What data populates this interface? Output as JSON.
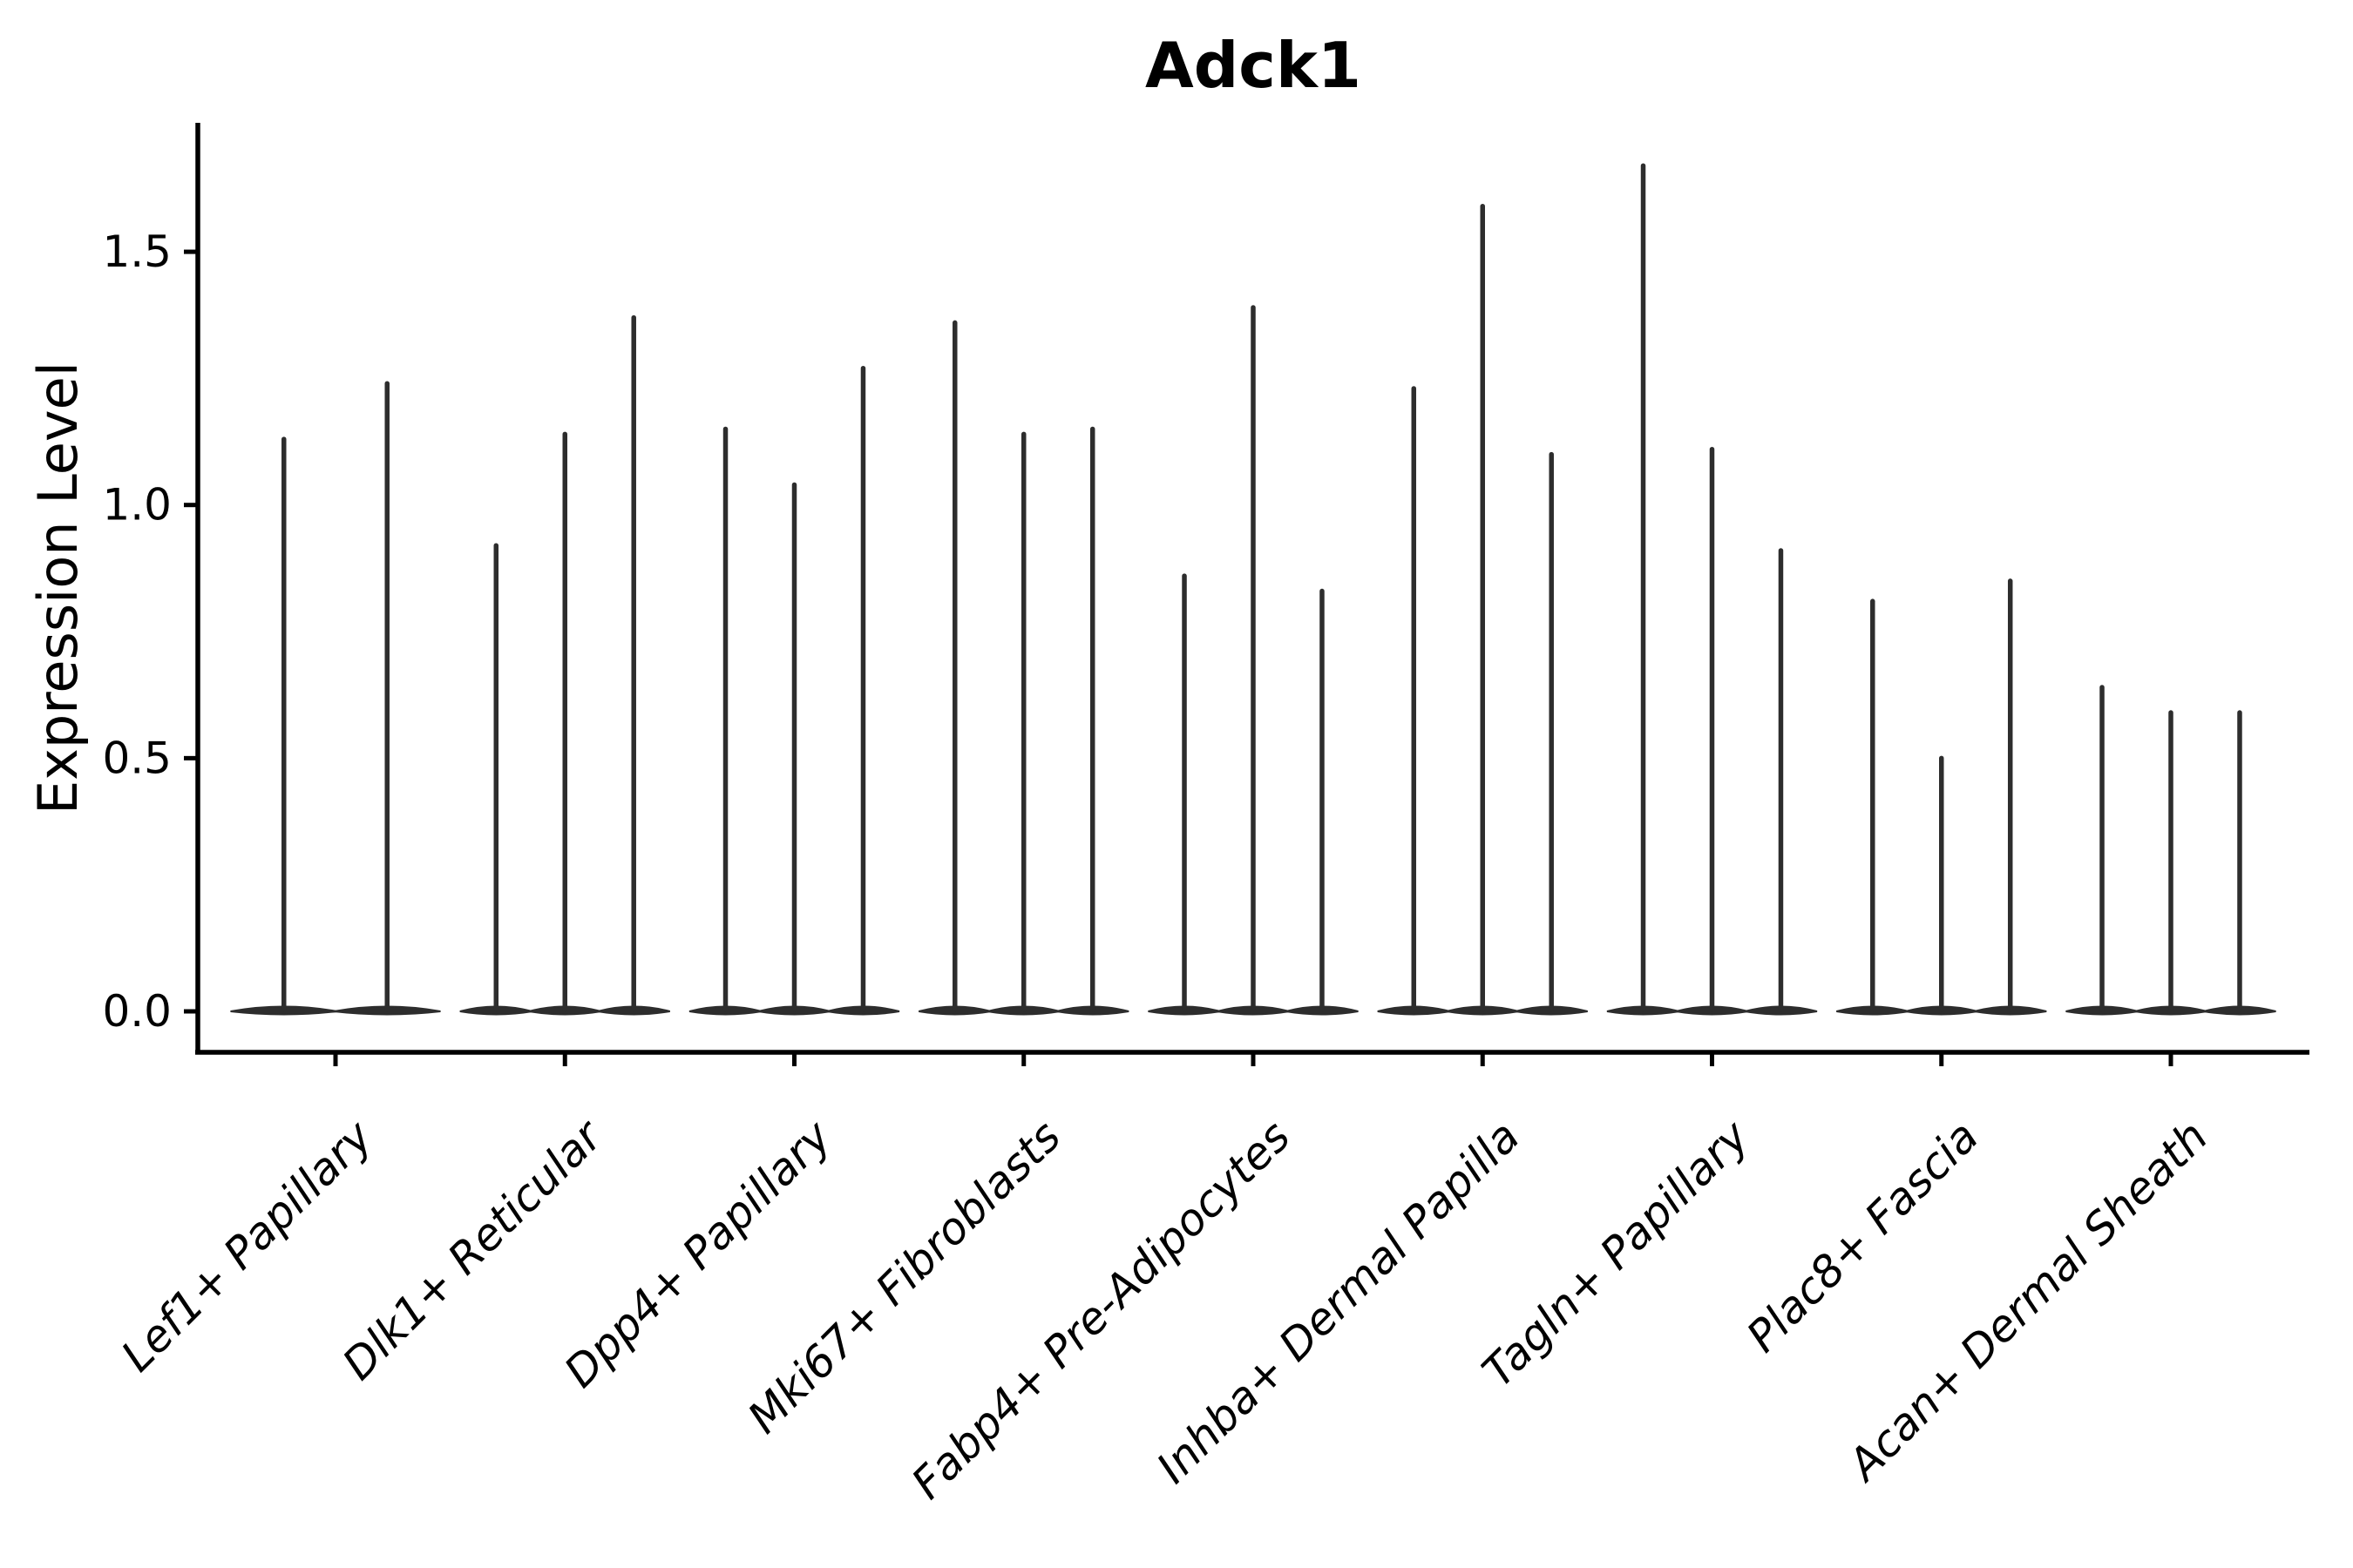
{
  "title": "Adck1",
  "chart_data": {
    "type": "violin",
    "title": "Adck1",
    "xlabel": "",
    "ylabel": "Expression Level",
    "ylim": [
      -0.08,
      1.76
    ],
    "grid": false,
    "legend": null,
    "y_ticks": [
      {
        "value": 0.0,
        "label": "0.0"
      },
      {
        "value": 0.5,
        "label": "0.5"
      },
      {
        "value": 1.0,
        "label": "1.0"
      },
      {
        "value": 1.5,
        "label": "1.5"
      }
    ],
    "x_tick_rotation_deg": 45,
    "categories": [
      {
        "label": "Lef1+ Papillary",
        "violin_max_values": [
          1.13,
          1.24
        ]
      },
      {
        "label": "Dlk1+ Reticular",
        "violin_max_values": [
          0.92,
          1.14,
          1.37
        ]
      },
      {
        "label": "Dpp4+ Papillary",
        "violin_max_values": [
          1.15,
          1.04,
          1.27
        ]
      },
      {
        "label": "Mki67+ Fibroblasts",
        "violin_max_values": [
          1.36,
          1.14,
          1.15
        ]
      },
      {
        "label": "Fabp4+ Pre-Adipocytes",
        "violin_max_values": [
          0.86,
          1.39,
          0.83
        ]
      },
      {
        "label": "Inhba+ Dermal Papilla",
        "violin_max_values": [
          1.23,
          1.59,
          1.1
        ]
      },
      {
        "label": "Tagln+ Papillary",
        "violin_max_values": [
          1.67,
          1.11,
          0.91
        ]
      },
      {
        "label": "Plac8+ Fascia",
        "violin_max_values": [
          0.81,
          0.5,
          0.85
        ]
      },
      {
        "label": "Acan+ Dermal Sheath",
        "violin_max_values": [
          0.64,
          0.59,
          0.59
        ]
      }
    ],
    "colors": {
      "violin": "#2d2d2d",
      "axis": "#000000",
      "text": "#000000",
      "background": "#ffffff"
    }
  }
}
